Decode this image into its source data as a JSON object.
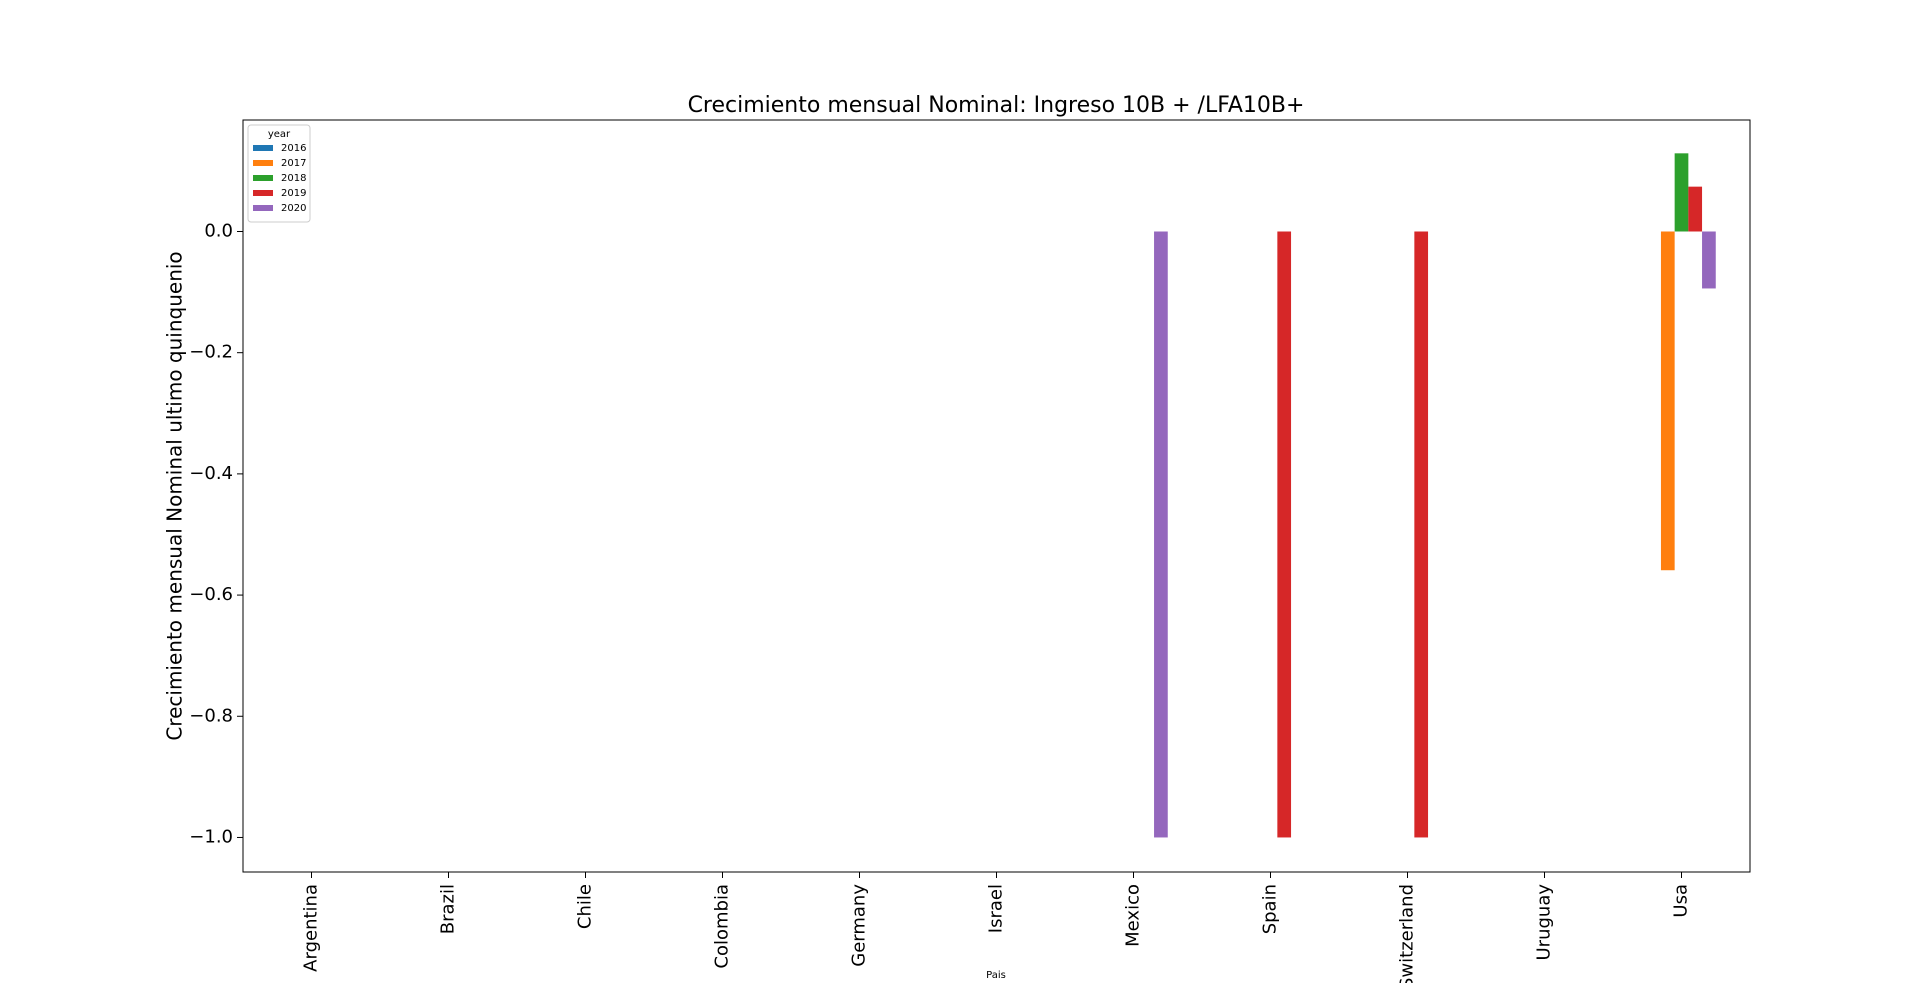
{
  "chart_data": {
    "type": "bar",
    "title": "Crecimiento mensual Nominal: Ingreso 10B + /LFA10B+",
    "xlabel": "Pais",
    "ylabel": "Crecimiento mensual Nominal ultimo quinquenio",
    "categories": [
      "Argentina",
      "Brazil",
      "Chile",
      "Colombia",
      "Germany",
      "Israel",
      "Mexico",
      "Spain",
      "Switzerland",
      "Uruguay",
      "Usa"
    ],
    "legend_title": "year",
    "legend_position": "upper-left",
    "series": [
      {
        "name": "2016",
        "color": "#1f77b4",
        "values": [
          null,
          null,
          null,
          null,
          null,
          null,
          null,
          null,
          null,
          null,
          null
        ]
      },
      {
        "name": "2017",
        "color": "#ff7f0e",
        "values": [
          null,
          null,
          null,
          null,
          null,
          null,
          null,
          null,
          null,
          null,
          -0.559
        ]
      },
      {
        "name": "2018",
        "color": "#2ca02c",
        "values": [
          null,
          null,
          null,
          null,
          null,
          null,
          null,
          null,
          null,
          null,
          0.129
        ]
      },
      {
        "name": "2019",
        "color": "#d62728",
        "values": [
          null,
          null,
          null,
          null,
          null,
          null,
          null,
          -1.0,
          -1.0,
          null,
          0.074
        ]
      },
      {
        "name": "2020",
        "color": "#9467bd",
        "values": [
          null,
          null,
          null,
          null,
          null,
          null,
          -1.0,
          null,
          null,
          null,
          -0.094
        ]
      }
    ],
    "ylim": [
      -1.057,
      0.184
    ],
    "yticks": [
      {
        "value": -1.0,
        "label": "−1.0"
      },
      {
        "value": -0.8,
        "label": "−0.8"
      },
      {
        "value": -0.6,
        "label": "−0.6"
      },
      {
        "value": -0.4,
        "label": "−0.4"
      },
      {
        "value": -0.2,
        "label": "−0.2"
      },
      {
        "value": 0.0,
        "label": "0.0"
      }
    ],
    "grid": false
  }
}
